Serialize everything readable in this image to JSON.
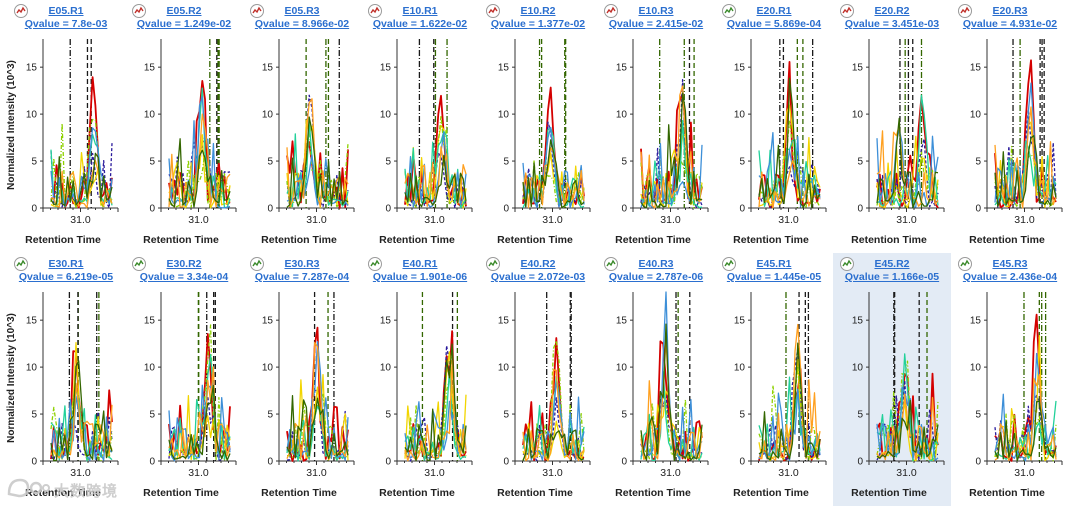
{
  "chart_data": {
    "type": "line",
    "title": "",
    "ylabel": "Normalized Intensity (10^3)",
    "xlabel": "Retention Time",
    "ylim": [
      0,
      18
    ],
    "yticks": [
      0,
      5,
      10,
      15
    ],
    "xticks": [
      "31.0"
    ],
    "legend": "none",
    "series_colors": [
      "#d40000",
      "#2a1a9c",
      "#f2d500",
      "#8ed100",
      "#22d19a",
      "#3d8fd8",
      "#ffa020",
      "#336600"
    ],
    "panels": [
      {
        "name": "E05.R1",
        "qvalue": "Qvalue = 7.8e-03"
      },
      {
        "name": "E05.R2",
        "qvalue": "Qvalue = 1.249e-02"
      },
      {
        "name": "E05.R3",
        "qvalue": "Qvalue = 8.966e-02"
      },
      {
        "name": "E10.R1",
        "qvalue": "Qvalue = 1.622e-02"
      },
      {
        "name": "E10.R2",
        "qvalue": "Qvalue = 1.377e-02"
      },
      {
        "name": "E10.R3",
        "qvalue": "Qvalue = 2.415e-02"
      },
      {
        "name": "E20.R1",
        "qvalue": "Qvalue = 5.869e-04"
      },
      {
        "name": "E20.R2",
        "qvalue": "Qvalue = 3.451e-03"
      },
      {
        "name": "E20.R3",
        "qvalue": "Qvalue = 4.931e-02"
      },
      {
        "name": "E30.R1",
        "qvalue": "Qvalue = 6.219e-05"
      },
      {
        "name": "E30.R2",
        "qvalue": "Qvalue = 3.34e-04"
      },
      {
        "name": "E30.R3",
        "qvalue": "Qvalue = 7.287e-04"
      },
      {
        "name": "E40.R1",
        "qvalue": "Qvalue = 1.901e-06"
      },
      {
        "name": "E40.R2",
        "qvalue": "Qvalue = 2.072e-03"
      },
      {
        "name": "E40.R3",
        "qvalue": "Qvalue = 2.787e-06"
      },
      {
        "name": "E45.R1",
        "qvalue": "Qvalue = 1.445e-05"
      },
      {
        "name": "E45.R2",
        "qvalue": "Qvalue = 1.166e-05",
        "selected": true
      },
      {
        "name": "E45.R3",
        "qvalue": "Qvalue = 2.436e-04"
      }
    ]
  },
  "watermark": "大数跨境"
}
